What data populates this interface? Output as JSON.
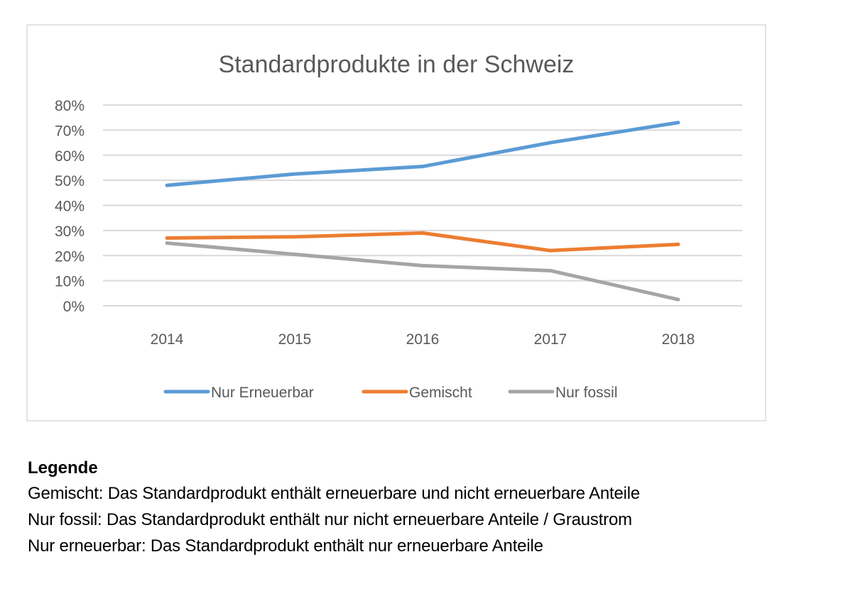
{
  "chart_data": {
    "type": "line",
    "title": "Standardprodukte in der Schweiz",
    "xlabel": "",
    "ylabel": "",
    "categories": [
      "2014",
      "2015",
      "2016",
      "2017",
      "2018"
    ],
    "y_ticks": [
      "0%",
      "10%",
      "20%",
      "30%",
      "40%",
      "50%",
      "60%",
      "70%",
      "80%"
    ],
    "ylim": [
      0,
      80
    ],
    "y_unit": "%",
    "grid": true,
    "legend_position": "bottom",
    "series": [
      {
        "name": "Nur Erneuerbar",
        "color": "#5b9bd5",
        "values": [
          48,
          52.5,
          55.5,
          65,
          73
        ]
      },
      {
        "name": "Gemischt",
        "color": "#ed7d31",
        "values": [
          27,
          27.5,
          29,
          22,
          24.5
        ]
      },
      {
        "name": "Nur fossil",
        "color": "#a5a5a5",
        "values": [
          25,
          20.5,
          16,
          14,
          2.5
        ]
      }
    ]
  },
  "notes": {
    "heading": "Legende",
    "lines": [
      "Gemischt: Das Standardprodukt enthält erneuerbare und nicht erneuerbare Anteile",
      "Nur fossil: Das Standardprodukt enthält nur nicht erneuerbare Anteile / Graustrom",
      "Nur erneuerbar: Das Standardprodukt enthält nur erneuerbare Anteile"
    ]
  }
}
